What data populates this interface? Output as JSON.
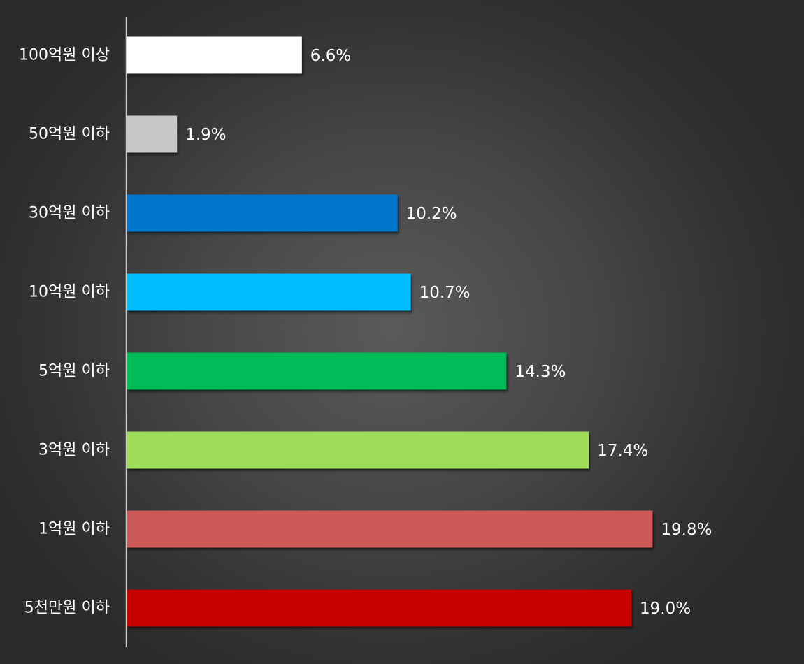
{
  "chart_data": {
    "type": "bar",
    "orientation": "horizontal",
    "categories": [
      "100억원 이상",
      "50억원 이하",
      "30억원 이하",
      "10억원 이하",
      "5억원 이하",
      "3억원 이하",
      "1억원 이하",
      "5천만원 이하"
    ],
    "values": [
      6.6,
      1.9,
      10.2,
      10.7,
      14.3,
      17.4,
      19.8,
      19.0
    ],
    "value_labels": [
      "6.6%",
      "1.9%",
      "10.2%",
      "10.7%",
      "14.3%",
      "17.4%",
      "19.8%",
      "19.0%"
    ],
    "colors": [
      "#ffffff",
      "#c8c8c8",
      "#0477cc",
      "#05bcff",
      "#05bc58",
      "#a0de5a",
      "#cb5a58",
      "#c80404"
    ],
    "title": "",
    "xlabel": "",
    "ylabel": "",
    "xlim": [
      0,
      22.0
    ],
    "grid": false,
    "legend": "none"
  }
}
